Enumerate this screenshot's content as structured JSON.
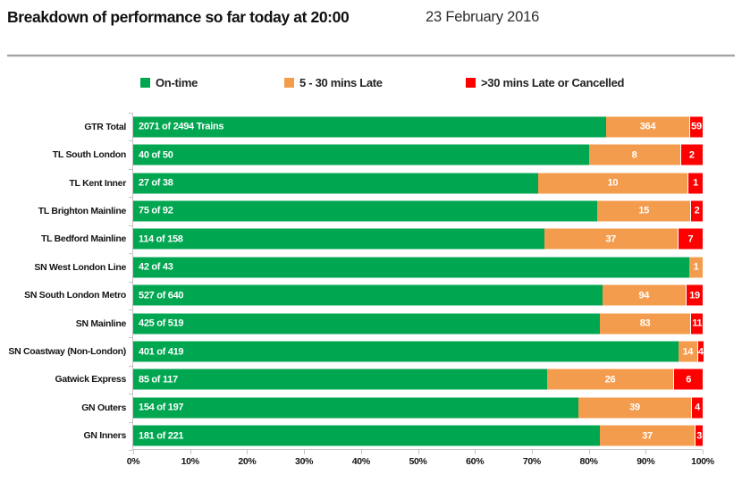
{
  "header": {
    "title": "Breakdown of performance so far today at 20:00",
    "date": "23 February 2016"
  },
  "legend": {
    "items": [
      {
        "label": "On-time",
        "color": "#00A650"
      },
      {
        "label": "5 - 30 mins Late",
        "color": "#F49C4D"
      },
      {
        "label": ">30 mins Late or Cancelled",
        "color": "#FE0000"
      }
    ]
  },
  "colors": {
    "on_time": "#00A650",
    "late": "#F49C4D",
    "very_late": "#FE0000",
    "axis": "#C3C3C3"
  },
  "chart_data": {
    "type": "bar",
    "orientation": "horizontal",
    "stacked": true,
    "title": "Breakdown of performance so far today at 20:00",
    "subtitle": "23 February 2016",
    "legend_position": "top",
    "grid": false,
    "xlabel": "",
    "ylabel": "",
    "xlim": [
      0,
      100
    ],
    "x_unit": "percent of total trains",
    "x_ticks": [
      "0%",
      "10%",
      "20%",
      "30%",
      "40%",
      "50%",
      "60%",
      "70%",
      "80%",
      "90%",
      "100%"
    ],
    "categories": [
      "GTR Total",
      "TL South London",
      "TL Kent Inner",
      "TL Brighton Mainline",
      "TL Bedford Mainline",
      "SN West London Line",
      "SN South London Metro",
      "SN Mainline",
      "SN Coastway (Non-London)",
      "Gatwick Express",
      "GN Outers",
      "GN Inners"
    ],
    "totals": [
      2494,
      50,
      38,
      92,
      158,
      43,
      640,
      519,
      419,
      117,
      197,
      221
    ],
    "on_time_labels": [
      "2071 of 2494 Trains",
      "40 of 50",
      "27 of 38",
      "75 of 92",
      "114 of 158",
      "42 of 43",
      "527 of 640",
      "425 of 519",
      "401 of 419",
      "85 of 117",
      "154 of 197",
      "181 of 221"
    ],
    "series": [
      {
        "name": "On-time",
        "color": "#00A650",
        "values": [
          2071,
          40,
          27,
          75,
          114,
          42,
          527,
          425,
          401,
          85,
          154,
          181
        ]
      },
      {
        "name": "5 - 30 mins Late",
        "color": "#F49C4D",
        "values": [
          364,
          8,
          10,
          15,
          37,
          1,
          94,
          83,
          14,
          26,
          39,
          37
        ]
      },
      {
        "name": ">30 mins Late or Cancelled",
        "color": "#FE0000",
        "values": [
          59,
          2,
          1,
          2,
          7,
          0,
          19,
          11,
          4,
          6,
          4,
          3
        ]
      }
    ]
  }
}
